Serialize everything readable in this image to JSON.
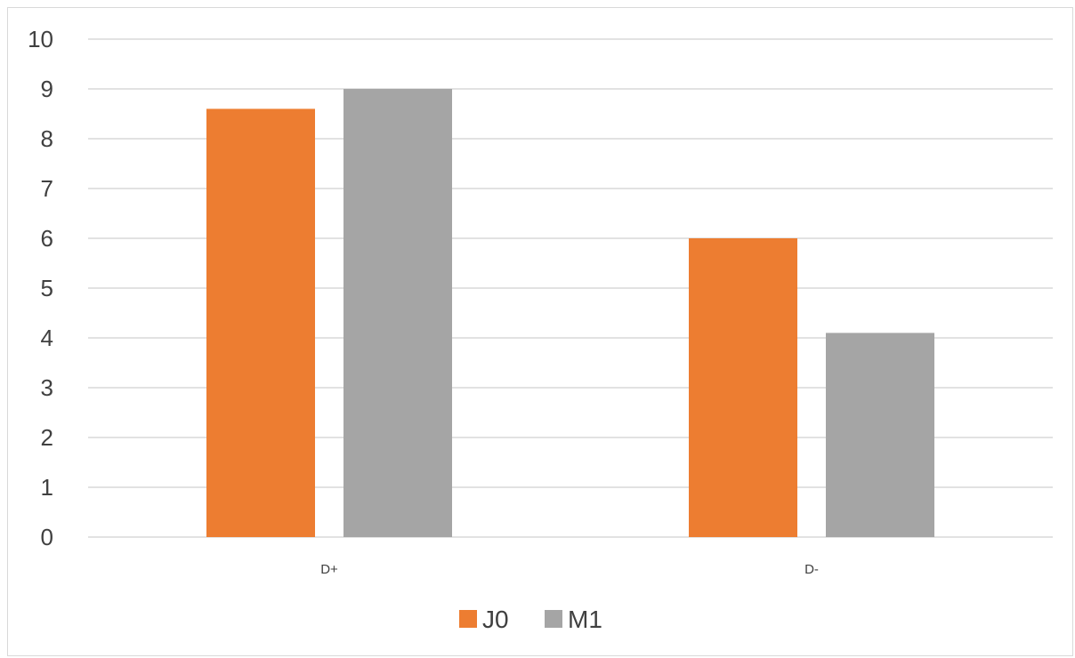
{
  "chart_data": {
    "type": "bar",
    "categories": [
      "D+",
      "D-"
    ],
    "series": [
      {
        "name": "J0",
        "values": [
          8.6,
          6.0
        ],
        "color": "#ED7D31"
      },
      {
        "name": "M1",
        "values": [
          9.0,
          4.1
        ],
        "color": "#A5A5A5"
      }
    ],
    "ylim": [
      0,
      10
    ],
    "yticks": [
      "0",
      "1",
      "2",
      "3",
      "4",
      "5",
      "6",
      "7",
      "8",
      "9",
      "10"
    ],
    "grid": true,
    "gridline_color": "#d9d9d9",
    "legend_position": "bottom"
  }
}
